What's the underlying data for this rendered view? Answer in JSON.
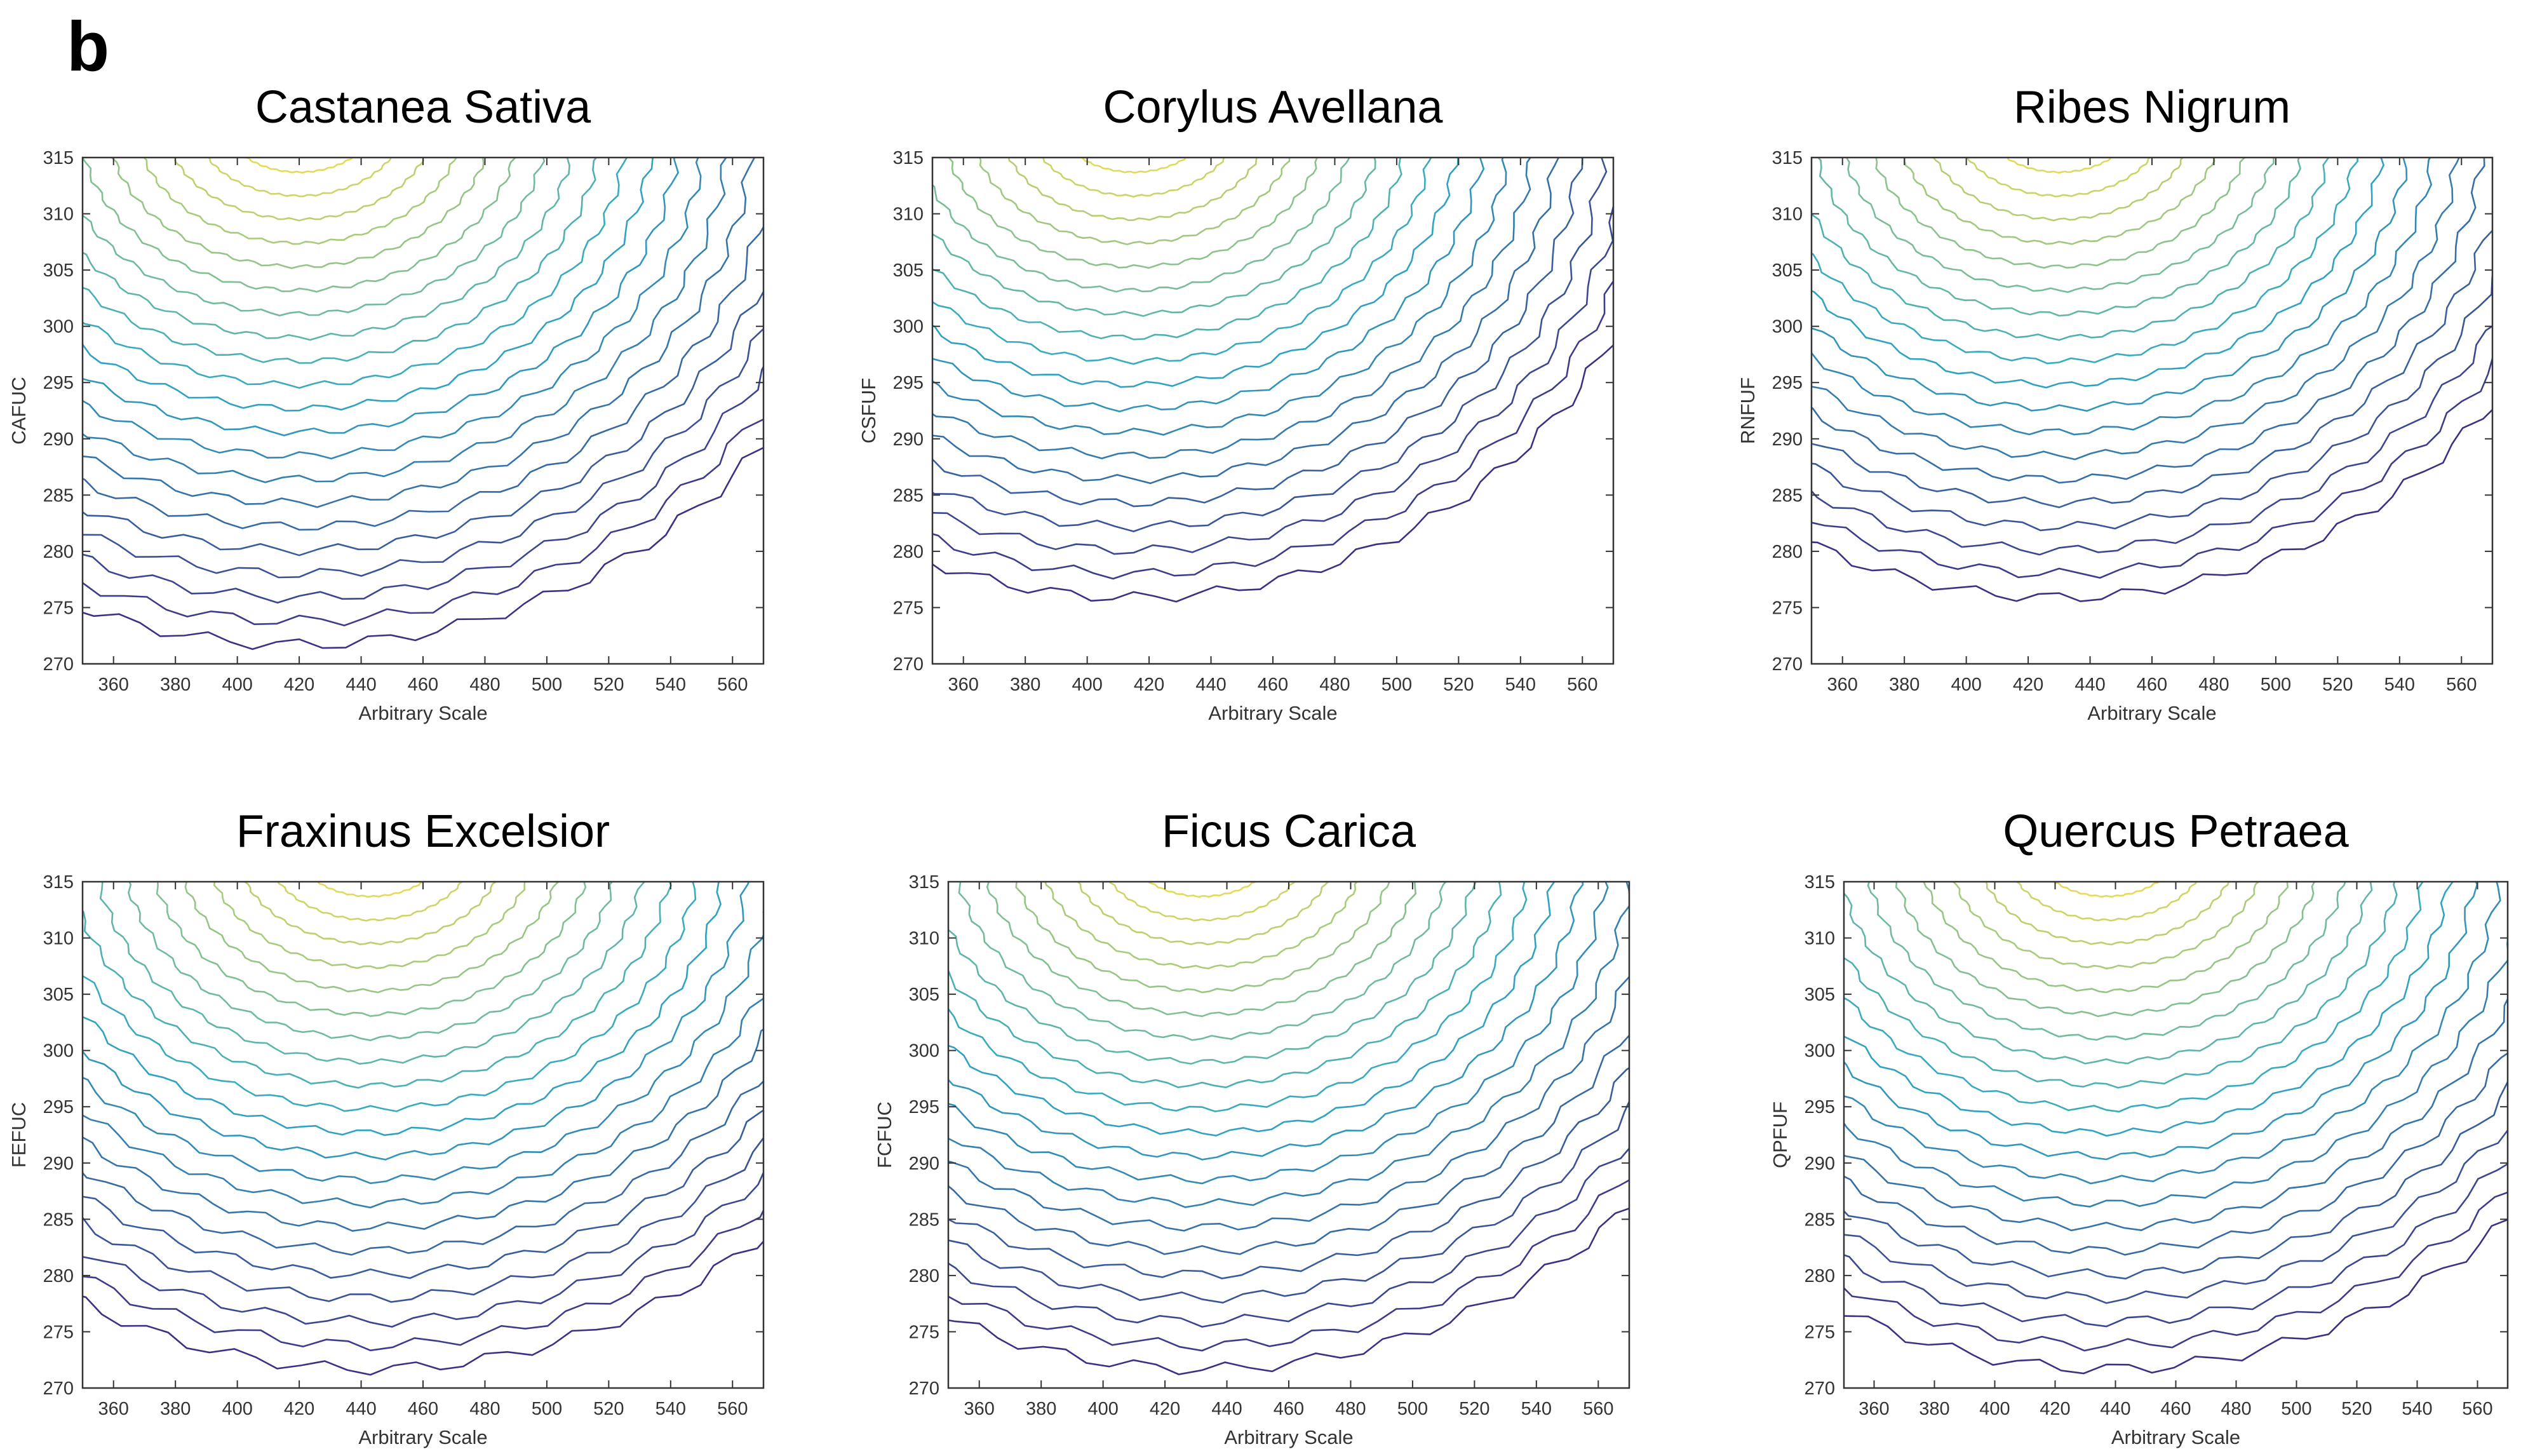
{
  "panel_label": "b",
  "chart_data": [
    {
      "type": "contour",
      "title": "Castanea Sativa",
      "xlabel": "Arbitrary Scale",
      "ylabel": "CAFUC",
      "xlim": [
        350,
        570
      ],
      "ylim": [
        270,
        315
      ],
      "xticks": [
        360,
        380,
        400,
        420,
        440,
        460,
        480,
        500,
        520,
        540,
        560
      ],
      "yticks": [
        270,
        275,
        280,
        285,
        290,
        295,
        300,
        305,
        310,
        315
      ],
      "grid": false,
      "peak": {
        "x": 420,
        "y": 318
      },
      "levels": 22
    },
    {
      "type": "contour",
      "title": "Corylus Avellana",
      "xlabel": "Arbitrary Scale",
      "ylabel": "CSFUF",
      "xlim": [
        350,
        570
      ],
      "ylim": [
        270,
        315
      ],
      "xticks": [
        360,
        380,
        400,
        420,
        440,
        460,
        480,
        500,
        520,
        540,
        560
      ],
      "yticks": [
        270,
        275,
        280,
        285,
        290,
        295,
        300,
        305,
        310,
        315
      ],
      "grid": false,
      "peak": {
        "x": 415,
        "y": 318
      },
      "levels": 20
    },
    {
      "type": "contour",
      "title": "Ribes Nigrum",
      "xlabel": "Arbitrary Scale",
      "ylabel": "RNFUF",
      "xlim": [
        350,
        570
      ],
      "ylim": [
        270,
        315
      ],
      "xticks": [
        360,
        380,
        400,
        420,
        440,
        460,
        480,
        500,
        520,
        540,
        560
      ],
      "yticks": [
        270,
        275,
        280,
        285,
        290,
        295,
        300,
        305,
        310,
        315
      ],
      "grid": false,
      "peak": {
        "x": 430,
        "y": 318
      },
      "levels": 20
    },
    {
      "type": "contour",
      "title": "Fraxinus Excelsior",
      "xlabel": "Arbitrary Scale",
      "ylabel": "FEFUC",
      "xlim": [
        350,
        570
      ],
      "ylim": [
        270,
        315
      ],
      "xticks": [
        360,
        380,
        400,
        420,
        440,
        460,
        480,
        500,
        520,
        540,
        560
      ],
      "yticks": [
        270,
        275,
        280,
        285,
        290,
        295,
        300,
        305,
        310,
        315
      ],
      "grid": false,
      "peak": {
        "x": 443,
        "y": 318
      },
      "levels": 22
    },
    {
      "type": "contour",
      "title": "Ficus Carica",
      "xlabel": "Arbitrary Scale",
      "ylabel": "FCFUC",
      "xlim": [
        350,
        570
      ],
      "ylim": [
        270,
        315
      ],
      "xticks": [
        360,
        380,
        400,
        420,
        440,
        460,
        480,
        500,
        520,
        540,
        560
      ],
      "yticks": [
        270,
        275,
        280,
        285,
        290,
        295,
        300,
        305,
        310,
        315
      ],
      "grid": false,
      "peak": {
        "x": 432,
        "y": 318
      },
      "levels": 22
    },
    {
      "type": "contour",
      "title": "Quercus Petraea",
      "xlabel": "Arbitrary Scale",
      "ylabel": "QPFUF",
      "xlim": [
        350,
        570
      ],
      "ylim": [
        270,
        315
      ],
      "xticks": [
        360,
        380,
        400,
        420,
        440,
        460,
        480,
        500,
        520,
        540,
        560
      ],
      "yticks": [
        270,
        275,
        280,
        285,
        290,
        295,
        300,
        305,
        310,
        315
      ],
      "grid": false,
      "peak": {
        "x": 437,
        "y": 318
      },
      "levels": 22
    }
  ],
  "colors": {
    "low": "#3e2f84",
    "mid": "#2fa8c4",
    "high": "#f4e04d",
    "frame": "#333333"
  }
}
